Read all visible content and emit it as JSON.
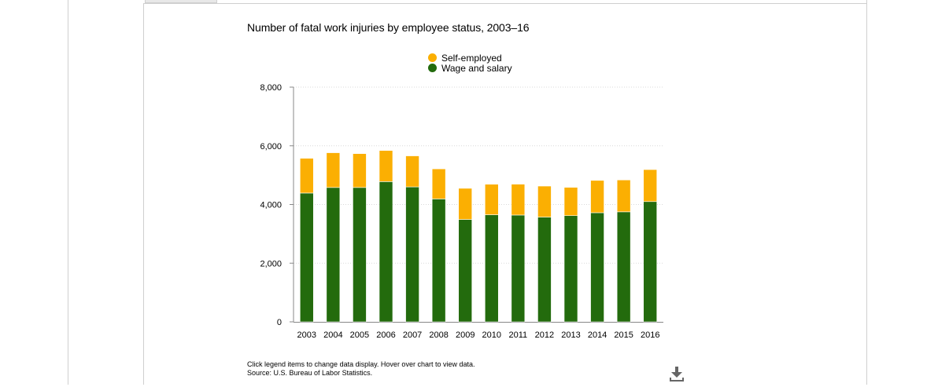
{
  "chart_data": {
    "type": "bar",
    "stacked": true,
    "title": "Number of fatal work injuries by employee status, 2003–16",
    "xlabel": "",
    "ylabel": "",
    "ylim": [
      0,
      8000
    ],
    "yticks": [
      0,
      2000,
      4000,
      6000,
      8000
    ],
    "ytick_labels": [
      "0",
      "2,000",
      "4,000",
      "6,000",
      "8,000"
    ],
    "grid": true,
    "legend_position": "top-center",
    "categories": [
      "2003",
      "2004",
      "2005",
      "2006",
      "2007",
      "2008",
      "2009",
      "2010",
      "2011",
      "2012",
      "2013",
      "2014",
      "2015",
      "2016"
    ],
    "series": [
      {
        "name": "Wage and salary",
        "color": "#236b0d",
        "values": [
          4390,
          4580,
          4580,
          4780,
          4600,
          4190,
          3490,
          3650,
          3640,
          3570,
          3620,
          3720,
          3750,
          4100
        ]
      },
      {
        "name": "Self-employed",
        "color": "#fbaf02",
        "values": [
          1185,
          1184,
          1154,
          1060,
          1057,
          1024,
          1061,
          1040,
          1053,
          1058,
          965,
          1101,
          1086,
          1090
        ]
      }
    ]
  },
  "legend": {
    "self_employed": "Self-employed",
    "wage_salary": "Wage and salary"
  },
  "notes": {
    "line1": "Click legend items to change data display. Hover over chart to view data.",
    "line2": "Source: U.S. Bureau of Labor Statistics."
  },
  "icons": {
    "download": "download-icon"
  },
  "colors": {
    "self_employed": "#fbaf02",
    "wage_salary": "#236b0d",
    "grid": "#d9d9d9",
    "axis": "#888888"
  }
}
